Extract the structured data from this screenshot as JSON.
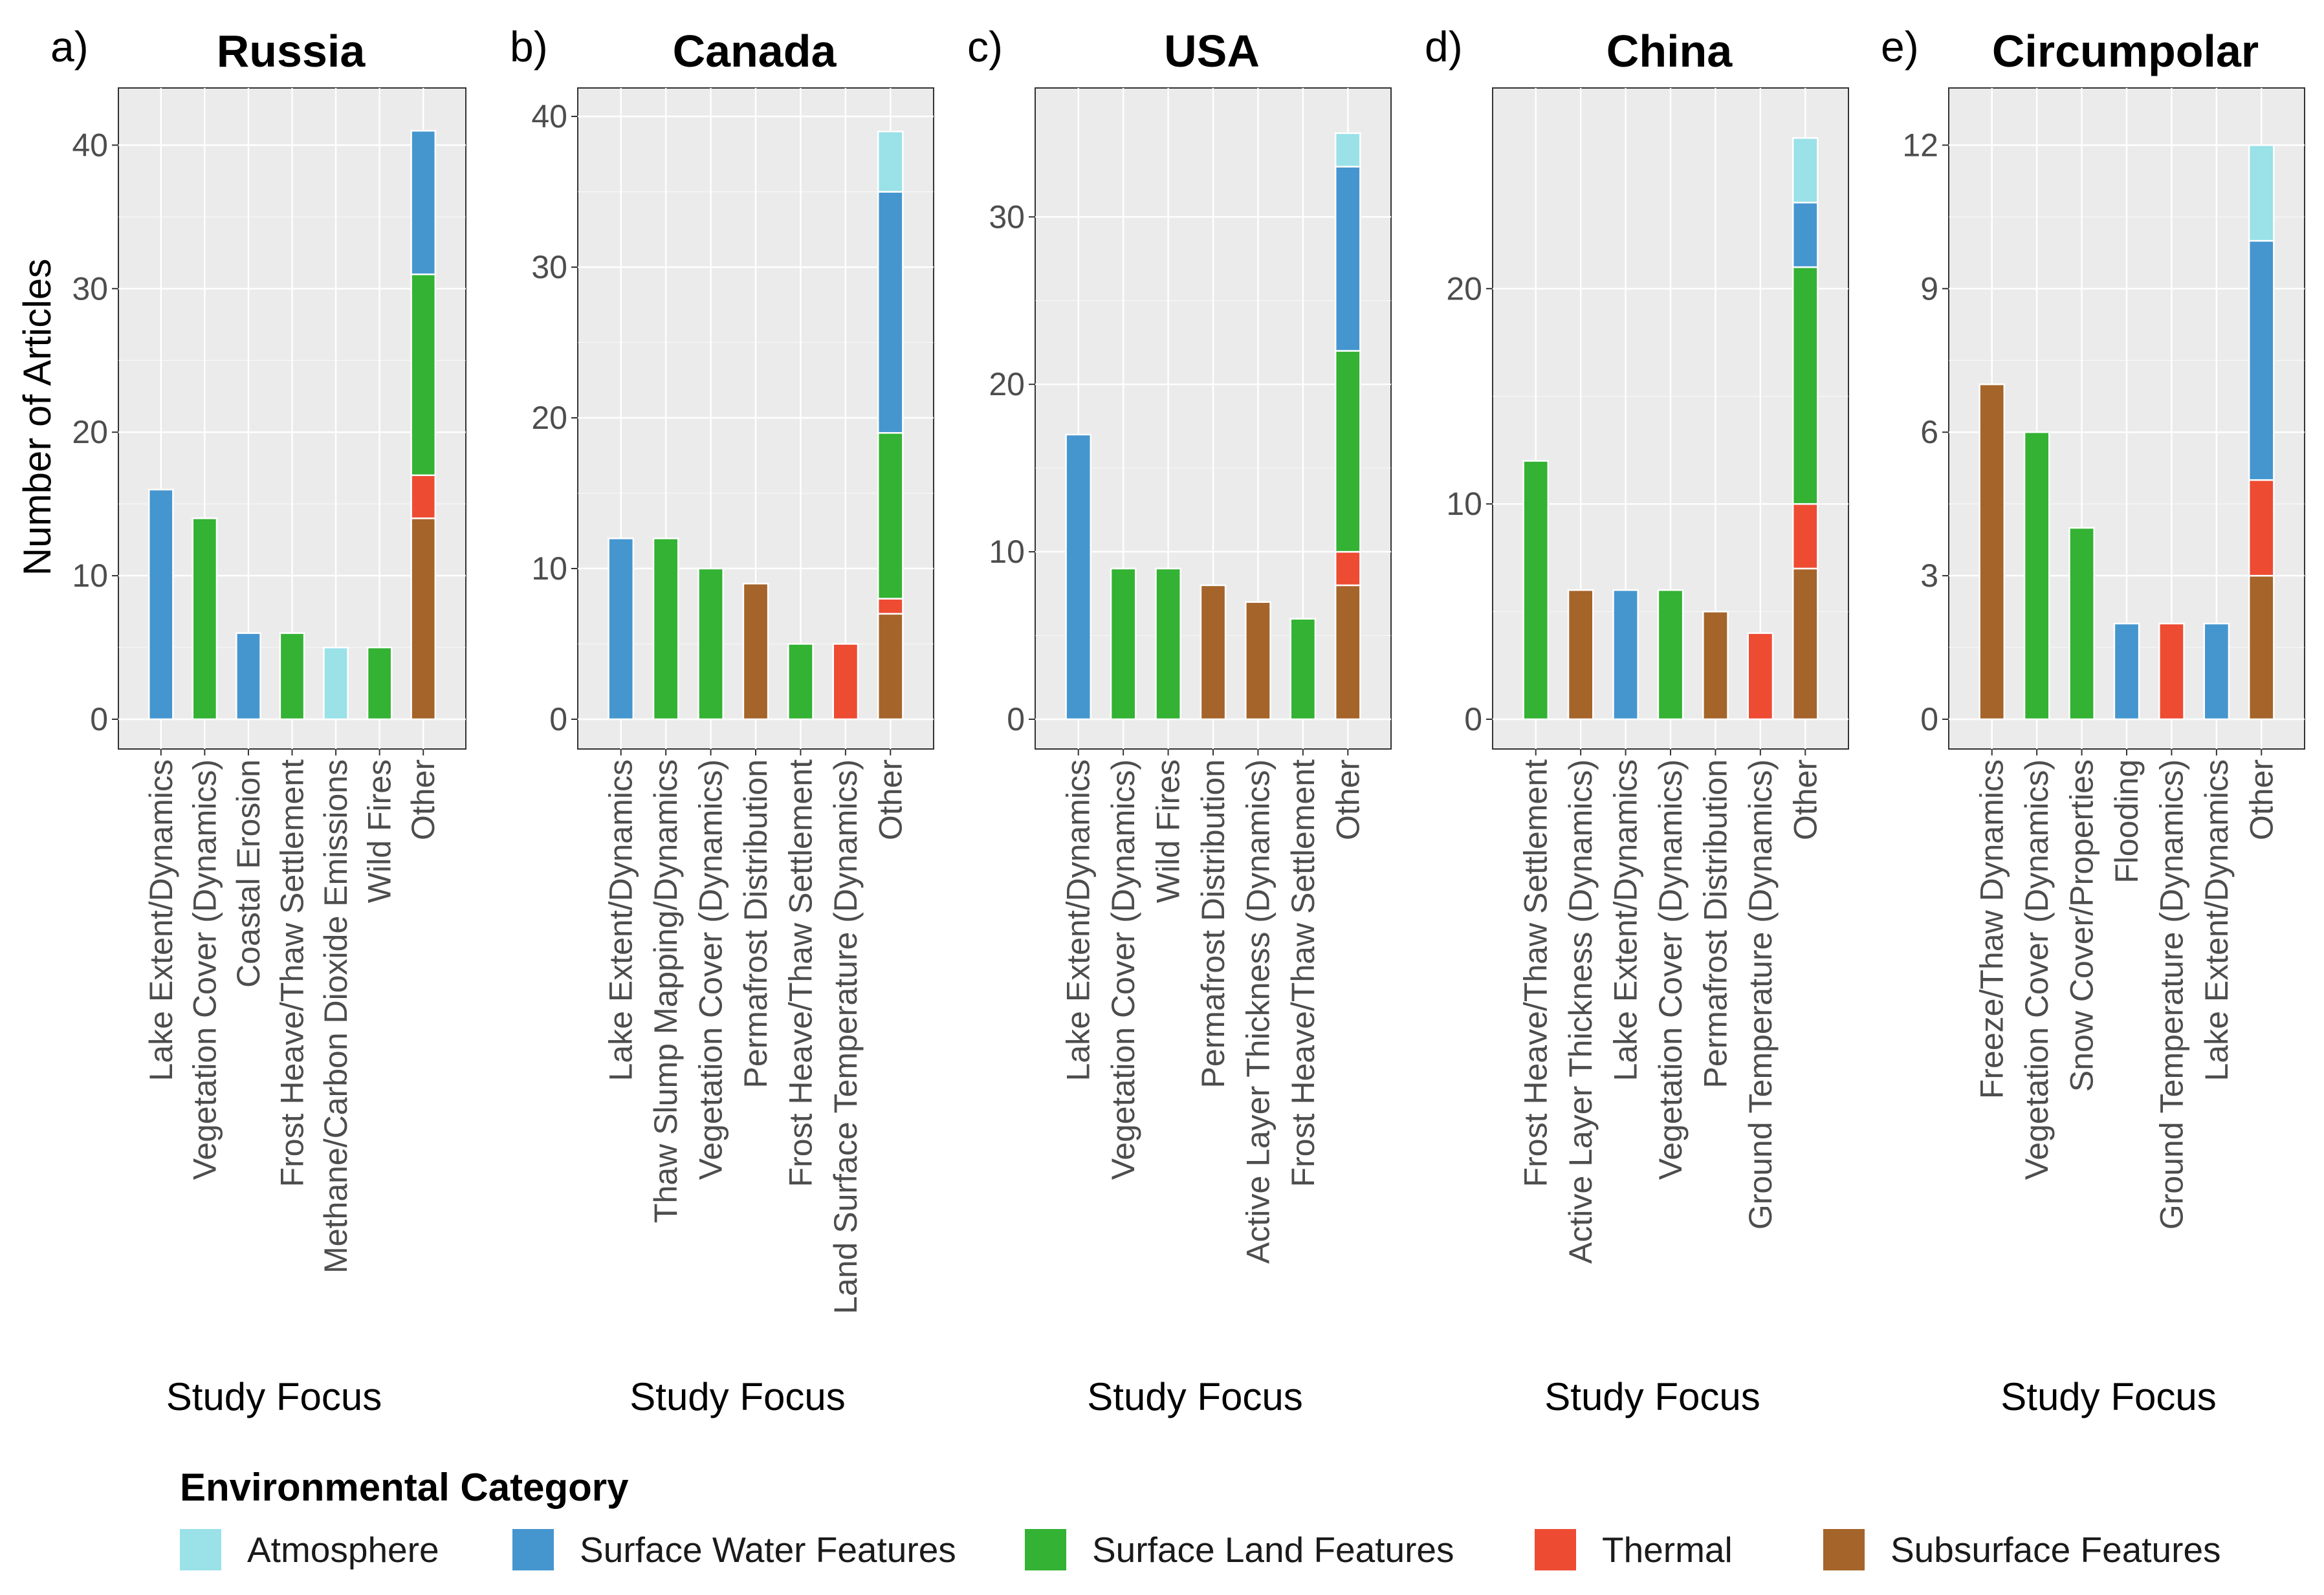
{
  "figure": {
    "y_axis_label": "Number of Articles",
    "legend_title": "Environmental Category"
  },
  "colors": {
    "Atmosphere": "#9ae1e8",
    "Surface Water Features": "#4596cf",
    "Surface Land Features": "#33b233",
    "Thermal": "#ee4b33",
    "Subsurface Features": "#a5642a",
    "panel_bg": "#ebebeb",
    "grid": "#ffffff"
  },
  "legend": {
    "title": "Environmental Category",
    "items": [
      {
        "label": "Atmosphere",
        "color": "#9ae1e8"
      },
      {
        "label": "Surface Water Features",
        "color": "#4596cf"
      },
      {
        "label": "Surface Land Features",
        "color": "#33b233"
      },
      {
        "label": "Thermal",
        "color": "#ee4b33"
      },
      {
        "label": "Subsurface Features",
        "color": "#a5642a"
      }
    ]
  },
  "chart_data": [
    {
      "panel": "a)",
      "type": "bar",
      "stacked": true,
      "title": "Russia",
      "xlabel": "Study Focus",
      "ylabel": "Number of Articles",
      "ylim": [
        0,
        42
      ],
      "y_ticks": [
        0,
        10,
        20,
        30,
        40
      ],
      "categories": [
        "Lake Extent/Dynamics",
        "Vegetation Cover (Dynamics)",
        "Coastal Erosion",
        "Frost Heave/Thaw Settlement",
        "Methane/Carbon Dioxide Emissions",
        "Wild Fires",
        "Other"
      ],
      "bars": [
        [
          {
            "category": "Surface Water Features",
            "value": 16
          }
        ],
        [
          {
            "category": "Surface Land Features",
            "value": 14
          }
        ],
        [
          {
            "category": "Surface Water Features",
            "value": 6
          }
        ],
        [
          {
            "category": "Surface Land Features",
            "value": 6
          }
        ],
        [
          {
            "category": "Atmosphere",
            "value": 5
          }
        ],
        [
          {
            "category": "Surface Land Features",
            "value": 5
          }
        ],
        [
          {
            "category": "Subsurface Features",
            "value": 14
          },
          {
            "category": "Thermal",
            "value": 3
          },
          {
            "category": "Surface Land Features",
            "value": 14
          },
          {
            "category": "Surface Water Features",
            "value": 10
          }
        ]
      ]
    },
    {
      "panel": "b)",
      "type": "bar",
      "stacked": true,
      "title": "Canada",
      "xlabel": "Study Focus",
      "ylabel": "",
      "ylim": [
        0,
        40
      ],
      "y_ticks": [
        0,
        10,
        20,
        30,
        40
      ],
      "categories": [
        "Lake Extent/Dynamics",
        "Thaw Slump Mapping/Dynamics",
        "Vegetation Cover (Dynamics)",
        "Permafrost Distribution",
        "Frost Heave/Thaw Settlement",
        "Land Surface Temperature (Dynamics)",
        "Other"
      ],
      "bars": [
        [
          {
            "category": "Surface Water Features",
            "value": 12
          }
        ],
        [
          {
            "category": "Surface Land Features",
            "value": 12
          }
        ],
        [
          {
            "category": "Surface Land Features",
            "value": 10
          }
        ],
        [
          {
            "category": "Subsurface Features",
            "value": 9
          }
        ],
        [
          {
            "category": "Surface Land Features",
            "value": 5
          }
        ],
        [
          {
            "category": "Thermal",
            "value": 5
          }
        ],
        [
          {
            "category": "Subsurface Features",
            "value": 7
          },
          {
            "category": "Thermal",
            "value": 1
          },
          {
            "category": "Surface Land Features",
            "value": 11
          },
          {
            "category": "Surface Water Features",
            "value": 16
          },
          {
            "category": "Atmosphere",
            "value": 4
          }
        ]
      ]
    },
    {
      "panel": "c)",
      "type": "bar",
      "stacked": true,
      "title": "USA",
      "xlabel": "Study Focus",
      "ylabel": "",
      "ylim": [
        0,
        36
      ],
      "y_ticks": [
        0,
        10,
        20,
        30
      ],
      "categories": [
        "Lake Extent/Dynamics",
        "Vegetation Cover (Dynamics)",
        "Wild Fires",
        "Permafrost Distribution",
        "Active Layer Thickness (Dynamics)",
        "Frost Heave/Thaw Settlement",
        "Other"
      ],
      "bars": [
        [
          {
            "category": "Surface Water Features",
            "value": 17
          }
        ],
        [
          {
            "category": "Surface Land Features",
            "value": 9
          }
        ],
        [
          {
            "category": "Surface Land Features",
            "value": 9
          }
        ],
        [
          {
            "category": "Subsurface Features",
            "value": 8
          }
        ],
        [
          {
            "category": "Subsurface Features",
            "value": 7
          }
        ],
        [
          {
            "category": "Surface Land Features",
            "value": 6
          }
        ],
        [
          {
            "category": "Subsurface Features",
            "value": 8
          },
          {
            "category": "Thermal",
            "value": 2
          },
          {
            "category": "Surface Land Features",
            "value": 12
          },
          {
            "category": "Surface Water Features",
            "value": 11
          },
          {
            "category": "Atmosphere",
            "value": 2
          }
        ]
      ]
    },
    {
      "panel": "d)",
      "type": "bar",
      "stacked": true,
      "title": "China",
      "xlabel": "Study Focus",
      "ylabel": "",
      "ylim": [
        0,
        28
      ],
      "y_ticks": [
        0,
        10,
        20
      ],
      "categories": [
        "Frost Heave/Thaw Settlement",
        "Active Layer Thickness (Dynamics)",
        "Lake Extent/Dynamics",
        "Vegetation Cover (Dynamics)",
        "Permafrost Distribution",
        "Ground Temperature (Dynamics)",
        "Other"
      ],
      "bars": [
        [
          {
            "category": "Surface Land Features",
            "value": 12
          }
        ],
        [
          {
            "category": "Subsurface Features",
            "value": 6
          }
        ],
        [
          {
            "category": "Surface Water Features",
            "value": 6
          }
        ],
        [
          {
            "category": "Surface Land Features",
            "value": 6
          }
        ],
        [
          {
            "category": "Subsurface Features",
            "value": 5
          }
        ],
        [
          {
            "category": "Thermal",
            "value": 4
          }
        ],
        [
          {
            "category": "Subsurface Features",
            "value": 7
          },
          {
            "category": "Thermal",
            "value": 3
          },
          {
            "category": "Surface Land Features",
            "value": 11
          },
          {
            "category": "Surface Water Features",
            "value": 3
          },
          {
            "category": "Atmosphere",
            "value": 3
          }
        ]
      ]
    },
    {
      "panel": "e)",
      "type": "bar",
      "stacked": true,
      "title": "Circumpolar",
      "xlabel": "Study Focus",
      "ylabel": "",
      "ylim": [
        0,
        12.6
      ],
      "y_ticks": [
        0,
        3,
        6,
        9,
        12
      ],
      "categories": [
        "Freeze/Thaw Dynamics",
        "Vegetation Cover (Dynamics)",
        "Snow Cover/Properties",
        "Flooding",
        "Ground Temperature (Dynamics)",
        "Lake Extent/Dynamics",
        "Other"
      ],
      "bars": [
        [
          {
            "category": "Subsurface Features",
            "value": 7
          }
        ],
        [
          {
            "category": "Surface Land Features",
            "value": 6
          }
        ],
        [
          {
            "category": "Surface Land Features",
            "value": 4
          }
        ],
        [
          {
            "category": "Surface Water Features",
            "value": 2
          }
        ],
        [
          {
            "category": "Thermal",
            "value": 2
          }
        ],
        [
          {
            "category": "Surface Water Features",
            "value": 2
          }
        ],
        [
          {
            "category": "Subsurface Features",
            "value": 3
          },
          {
            "category": "Thermal",
            "value": 2
          },
          {
            "category": "Surface Water Features",
            "value": 5
          },
          {
            "category": "Atmosphere",
            "value": 2
          }
        ]
      ]
    }
  ]
}
